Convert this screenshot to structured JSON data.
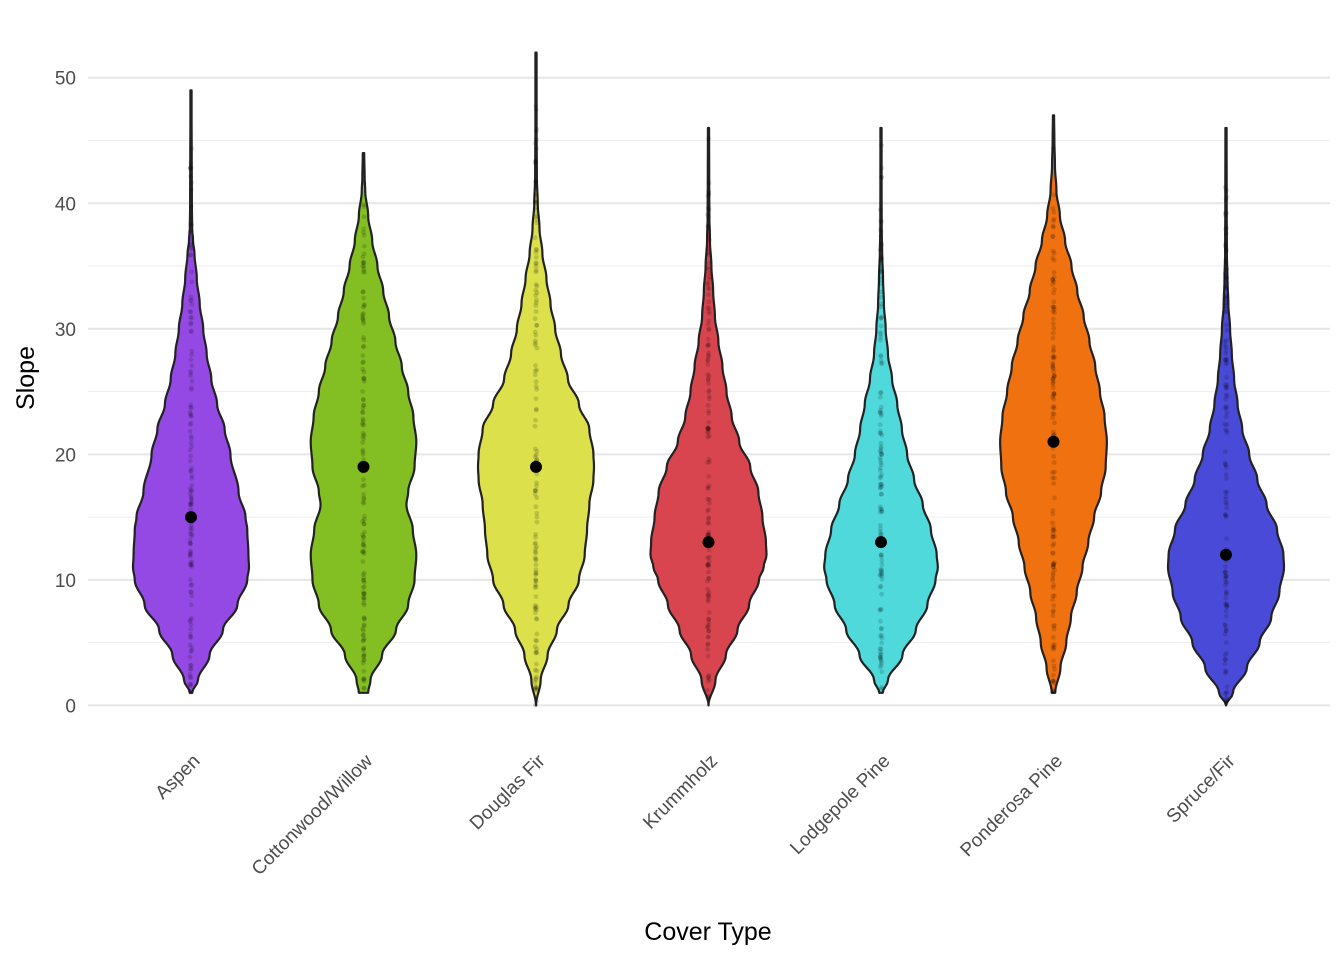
{
  "chart_data": {
    "type": "violin",
    "xlabel": "Cover Type",
    "ylabel": "Slope",
    "ylim": [
      -2.6,
      54.6
    ],
    "yticks": [
      0,
      10,
      20,
      30,
      40,
      50
    ],
    "grid": true,
    "legend": "none",
    "median_marker": "black point",
    "categories": [
      {
        "name": "Aspen",
        "color": "#9449E5",
        "min": 1,
        "max": 49,
        "median": 15,
        "profile": [
          [
            1,
            0.02
          ],
          [
            2,
            0.12
          ],
          [
            4,
            0.32
          ],
          [
            6,
            0.55
          ],
          [
            8,
            0.8
          ],
          [
            10,
            0.97
          ],
          [
            11,
            1.0
          ],
          [
            12,
            0.99
          ],
          [
            14,
            0.97
          ],
          [
            15,
            0.94
          ],
          [
            17,
            0.82
          ],
          [
            20,
            0.68
          ],
          [
            22,
            0.58
          ],
          [
            24,
            0.45
          ],
          [
            26,
            0.35
          ],
          [
            28,
            0.27
          ],
          [
            30,
            0.21
          ],
          [
            32,
            0.15
          ],
          [
            34,
            0.1
          ],
          [
            36,
            0.06
          ],
          [
            37,
            0.035
          ],
          [
            38,
            0.02
          ],
          [
            40,
            0.015
          ],
          [
            44,
            0.012
          ],
          [
            47,
            0.01
          ],
          [
            49,
            0.01
          ]
        ]
      },
      {
        "name": "Cottonwood/Willow",
        "color": "#83BF22",
        "min": 1,
        "max": 44,
        "median": 19,
        "profile": [
          [
            1,
            0.08
          ],
          [
            2,
            0.12
          ],
          [
            4,
            0.32
          ],
          [
            6,
            0.56
          ],
          [
            8,
            0.77
          ],
          [
            10,
            0.88
          ],
          [
            12,
            0.91
          ],
          [
            14,
            0.85
          ],
          [
            16,
            0.74
          ],
          [
            17,
            0.77
          ],
          [
            19,
            0.88
          ],
          [
            21,
            0.91
          ],
          [
            23,
            0.86
          ],
          [
            25,
            0.77
          ],
          [
            27,
            0.66
          ],
          [
            29,
            0.55
          ],
          [
            31,
            0.44
          ],
          [
            33,
            0.34
          ],
          [
            35,
            0.24
          ],
          [
            37,
            0.15
          ],
          [
            39,
            0.08
          ],
          [
            41,
            0.03
          ],
          [
            42,
            0.02
          ],
          [
            44,
            0.012
          ]
        ]
      },
      {
        "name": "Douglas Fir",
        "color": "#DBE04B",
        "min": 0,
        "max": 52,
        "median": 19,
        "profile": [
          [
            0,
            0.0
          ],
          [
            2,
            0.08
          ],
          [
            4,
            0.2
          ],
          [
            6,
            0.36
          ],
          [
            8,
            0.56
          ],
          [
            10,
            0.74
          ],
          [
            12,
            0.84
          ],
          [
            14,
            0.88
          ],
          [
            16,
            0.92
          ],
          [
            18,
            0.99
          ],
          [
            19,
            1.0
          ],
          [
            20,
            0.99
          ],
          [
            22,
            0.92
          ],
          [
            24,
            0.74
          ],
          [
            26,
            0.55
          ],
          [
            28,
            0.43
          ],
          [
            30,
            0.33
          ],
          [
            32,
            0.25
          ],
          [
            34,
            0.18
          ],
          [
            36,
            0.11
          ],
          [
            38,
            0.06
          ],
          [
            40,
            0.03
          ],
          [
            42,
            0.015
          ],
          [
            46,
            0.01
          ],
          [
            52,
            0.01
          ]
        ]
      },
      {
        "name": "Krummholz",
        "color": "#D9454F",
        "min": 0,
        "max": 46,
        "median": 13,
        "profile": [
          [
            0,
            0.0
          ],
          [
            2,
            0.12
          ],
          [
            4,
            0.3
          ],
          [
            6,
            0.5
          ],
          [
            8,
            0.7
          ],
          [
            10,
            0.87
          ],
          [
            11,
            0.95
          ],
          [
            12,
            1.0
          ],
          [
            13,
            0.99
          ],
          [
            15,
            0.93
          ],
          [
            17,
            0.86
          ],
          [
            19,
            0.72
          ],
          [
            21,
            0.53
          ],
          [
            23,
            0.4
          ],
          [
            25,
            0.31
          ],
          [
            27,
            0.24
          ],
          [
            29,
            0.17
          ],
          [
            31,
            0.11
          ],
          [
            33,
            0.08
          ],
          [
            35,
            0.05
          ],
          [
            37,
            0.025
          ],
          [
            39,
            0.015
          ],
          [
            42,
            0.012
          ],
          [
            46,
            0.01
          ]
        ]
      },
      {
        "name": "Lodgepole Pine",
        "color": "#4FD9DB",
        "min": 1,
        "max": 46,
        "median": 13,
        "profile": [
          [
            1,
            0.03
          ],
          [
            2,
            0.12
          ],
          [
            4,
            0.37
          ],
          [
            6,
            0.6
          ],
          [
            8,
            0.8
          ],
          [
            10,
            0.94
          ],
          [
            11,
            0.98
          ],
          [
            12,
            0.96
          ],
          [
            14,
            0.86
          ],
          [
            16,
            0.72
          ],
          [
            18,
            0.57
          ],
          [
            20,
            0.45
          ],
          [
            22,
            0.36
          ],
          [
            24,
            0.28
          ],
          [
            26,
            0.19
          ],
          [
            28,
            0.12
          ],
          [
            30,
            0.08
          ],
          [
            32,
            0.05
          ],
          [
            34,
            0.035
          ],
          [
            36,
            0.02
          ],
          [
            38,
            0.012
          ],
          [
            42,
            0.01
          ],
          [
            46,
            0.01
          ]
        ]
      },
      {
        "name": "Ponderosa Pine",
        "color": "#F0710F",
        "min": 1,
        "max": 47,
        "median": 21,
        "profile": [
          [
            1,
            0.03
          ],
          [
            3,
            0.12
          ],
          [
            5,
            0.22
          ],
          [
            7,
            0.3
          ],
          [
            9,
            0.4
          ],
          [
            11,
            0.5
          ],
          [
            13,
            0.6
          ],
          [
            15,
            0.7
          ],
          [
            17,
            0.82
          ],
          [
            19,
            0.9
          ],
          [
            21,
            0.92
          ],
          [
            23,
            0.88
          ],
          [
            25,
            0.8
          ],
          [
            27,
            0.72
          ],
          [
            29,
            0.62
          ],
          [
            31,
            0.52
          ],
          [
            33,
            0.41
          ],
          [
            35,
            0.31
          ],
          [
            37,
            0.2
          ],
          [
            39,
            0.11
          ],
          [
            41,
            0.05
          ],
          [
            43,
            0.025
          ],
          [
            45,
            0.015
          ],
          [
            47,
            0.01
          ]
        ]
      },
      {
        "name": "Spruce/Fir",
        "color": "#4A4AD9",
        "min": 0,
        "max": 46,
        "median": 12,
        "profile": [
          [
            0,
            0.0
          ],
          [
            1,
            0.12
          ],
          [
            3,
            0.36
          ],
          [
            5,
            0.58
          ],
          [
            7,
            0.78
          ],
          [
            9,
            0.92
          ],
          [
            11,
            1.0
          ],
          [
            12,
            0.99
          ],
          [
            14,
            0.88
          ],
          [
            16,
            0.7
          ],
          [
            18,
            0.54
          ],
          [
            20,
            0.4
          ],
          [
            22,
            0.28
          ],
          [
            24,
            0.2
          ],
          [
            26,
            0.14
          ],
          [
            28,
            0.1
          ],
          [
            30,
            0.07
          ],
          [
            32,
            0.04
          ],
          [
            34,
            0.025
          ],
          [
            36,
            0.015
          ],
          [
            40,
            0.012
          ],
          [
            46,
            0.01
          ]
        ]
      }
    ]
  }
}
